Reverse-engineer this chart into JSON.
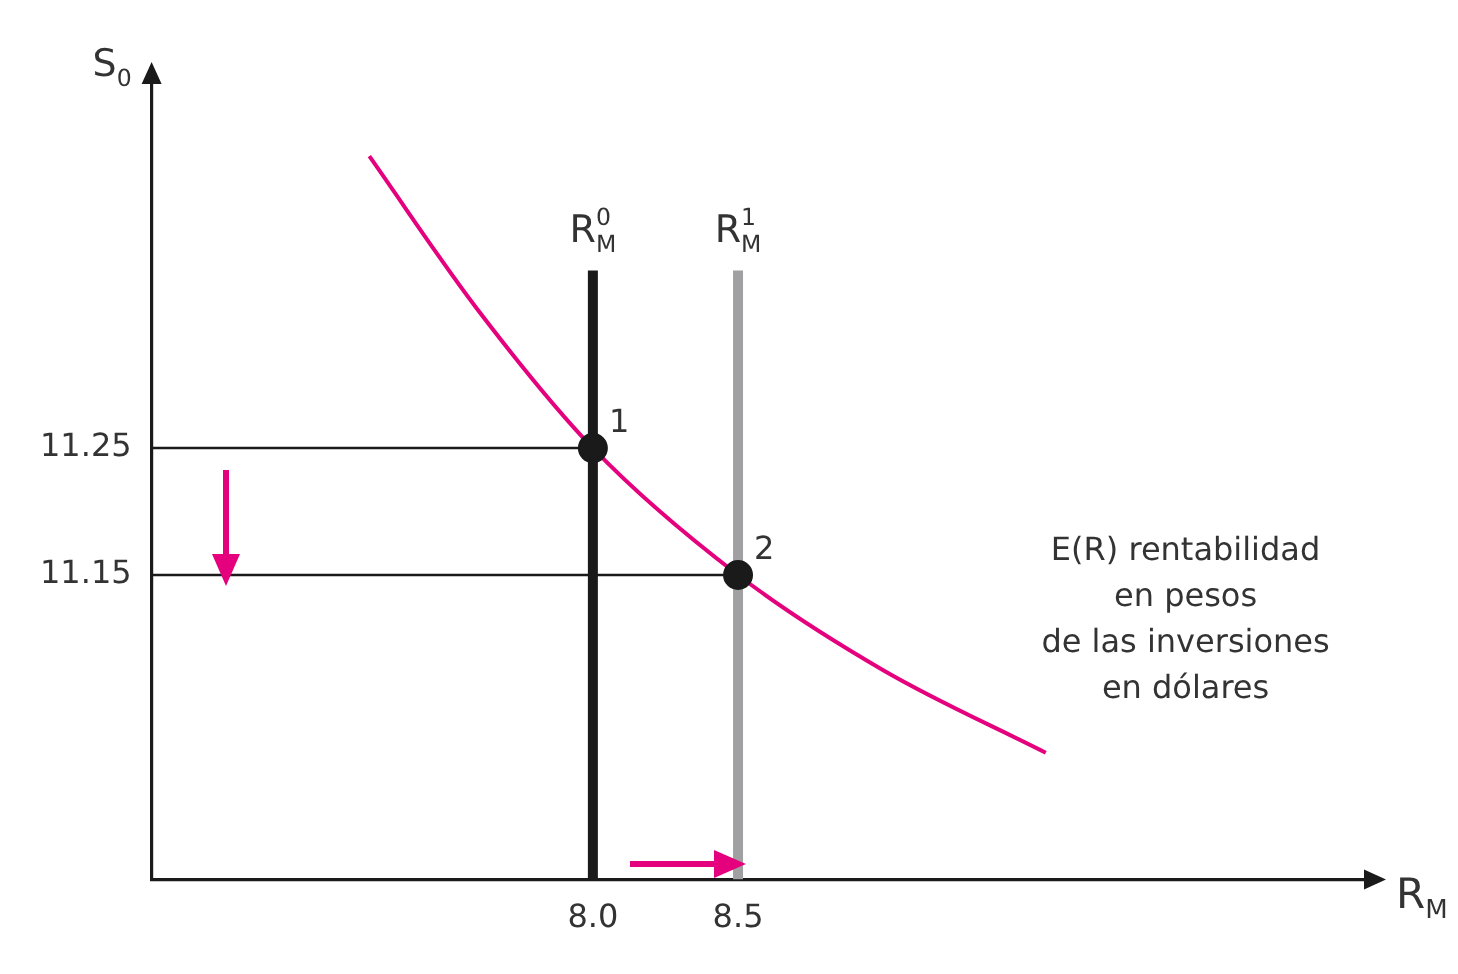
{
  "chart_data": {
    "type": "line",
    "xlabel": "R$_{M}$",
    "ylabel": "S$_{0}$",
    "xlim": [
      6.48,
      10.67
    ],
    "ylim": [
      10.91,
      11.54
    ],
    "xticks": [
      {
        "value": 8.0,
        "label": "8.0"
      },
      8.5
    ],
    "yticks": [
      11.15,
      11.25
    ],
    "grid": false,
    "legend": false,
    "series": [
      {
        "type": "line",
        "color": "#e5007d",
        "x": [
          7.23,
          7.6,
          8.0,
          8.5,
          9.0,
          9.56
        ],
        "values": [
          11.48,
          11.36,
          11.25,
          11.15,
          11.075,
          11.01
        ]
      },
      {
        "type": "line",
        "name": "R$_{M}$$^{0}$",
        "color": "#1a1a1a",
        "x": [
          8.0,
          8.0
        ],
        "values": [
          10.91,
          11.39
        ]
      },
      {
        "type": "line",
        "name": "R$_{M}$$^{1}$",
        "color": "#a0a0a2",
        "x": [
          8.5,
          8.5
        ],
        "values": [
          10.91,
          11.39
        ]
      },
      {
        "type": "line",
        "color": "#1a1a1a",
        "x": [
          6.48,
          8.0
        ],
        "values": [
          11.25,
          11.25
        ]
      },
      {
        "type": "line",
        "color": "#1a1a1a",
        "x": [
          6.48,
          8.5
        ],
        "values": [
          11.15,
          11.15
        ]
      },
      {
        "type": "scatter",
        "marker": "circle",
        "color": "#1a1a1a",
        "x": [
          8.0,
          8.5
        ],
        "values": [
          11.25,
          11.15
        ]
      }
    ],
    "annotations": [
      {
        "text": "1",
        "x": 8.0,
        "y": 11.25
      },
      {
        "text": "2",
        "x": 8.5,
        "y": 11.15
      },
      "E(R) rentabilidad\nen pesos\nde las inversiones\nen dólares"
    ]
  }
}
